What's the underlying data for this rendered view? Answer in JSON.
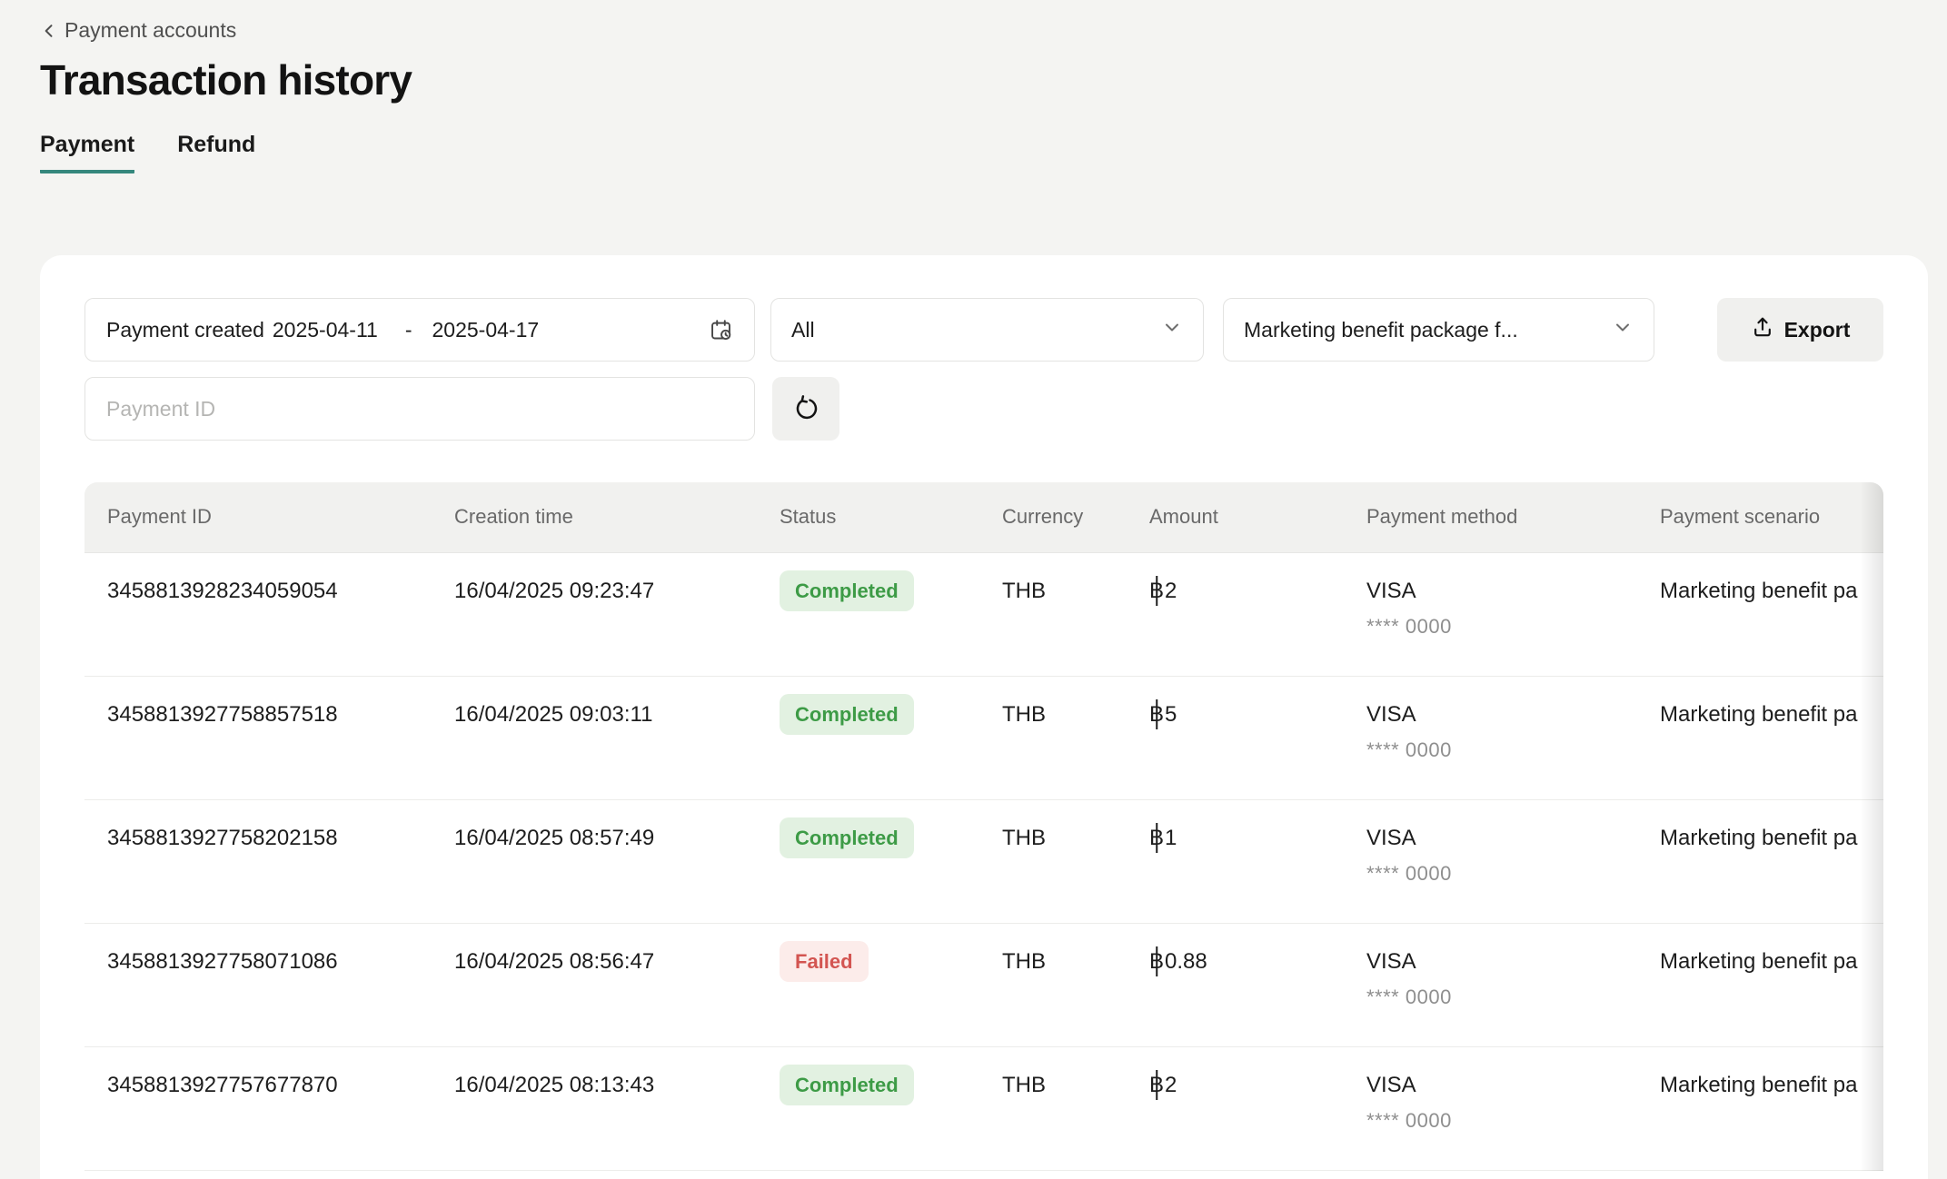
{
  "header": {
    "breadcrumb": "Payment accounts",
    "title": "Transaction history"
  },
  "tabs": [
    {
      "label": "Payment",
      "active": true
    },
    {
      "label": "Refund",
      "active": false
    }
  ],
  "filters": {
    "date_range": {
      "label": "Payment created",
      "start": "2025-04-11",
      "separator": "-",
      "end": "2025-04-17",
      "icon": "calendar-clock-icon"
    },
    "status_filter": {
      "value": "All",
      "icon": "chevron-down-icon"
    },
    "scenario_filter": {
      "value": "Marketing benefit package f...",
      "icon": "chevron-down-icon"
    },
    "payment_id_input": {
      "placeholder": "Payment ID",
      "value": ""
    },
    "export_button": {
      "label": "Export",
      "icon": "upload-icon"
    },
    "refresh_button": {
      "icon": "refresh-icon"
    }
  },
  "table": {
    "columns": [
      "Payment ID",
      "Creation time",
      "Status",
      "Currency",
      "Amount",
      "Payment method",
      "Payment scenario"
    ],
    "rows": [
      {
        "payment_id": "3458813928234059054",
        "creation_time": "16/04/2025 09:23:47",
        "status": "Completed",
        "currency": "THB",
        "currency_symbol": "฿",
        "amount": "2",
        "payment_method": "VISA",
        "payment_method_detail": "**** 0000",
        "payment_scenario": "Marketing benefit pa"
      },
      {
        "payment_id": "3458813927758857518",
        "creation_time": "16/04/2025 09:03:11",
        "status": "Completed",
        "currency": "THB",
        "currency_symbol": "฿",
        "amount": "5",
        "payment_method": "VISA",
        "payment_method_detail": "**** 0000",
        "payment_scenario": "Marketing benefit pa"
      },
      {
        "payment_id": "3458813927758202158",
        "creation_time": "16/04/2025 08:57:49",
        "status": "Completed",
        "currency": "THB",
        "currency_symbol": "฿",
        "amount": "1",
        "payment_method": "VISA",
        "payment_method_detail": "**** 0000",
        "payment_scenario": "Marketing benefit pa"
      },
      {
        "payment_id": "3458813927758071086",
        "creation_time": "16/04/2025 08:56:47",
        "status": "Failed",
        "currency": "THB",
        "currency_symbol": "฿",
        "amount": "0.88",
        "payment_method": "VISA",
        "payment_method_detail": "**** 0000",
        "payment_scenario": "Marketing benefit pa"
      },
      {
        "payment_id": "3458813927757677870",
        "creation_time": "16/04/2025 08:13:43",
        "status": "Completed",
        "currency": "THB",
        "currency_symbol": "฿",
        "amount": "2",
        "payment_method": "VISA",
        "payment_method_detail": "**** 0000",
        "payment_scenario": "Marketing benefit pa"
      }
    ]
  },
  "colors": {
    "accent_teal": "#35877d",
    "status_completed_bg": "#e2f1e1",
    "status_completed_text": "#3d9b46",
    "status_failed_bg": "#fcecea",
    "status_failed_text": "#d35551"
  }
}
